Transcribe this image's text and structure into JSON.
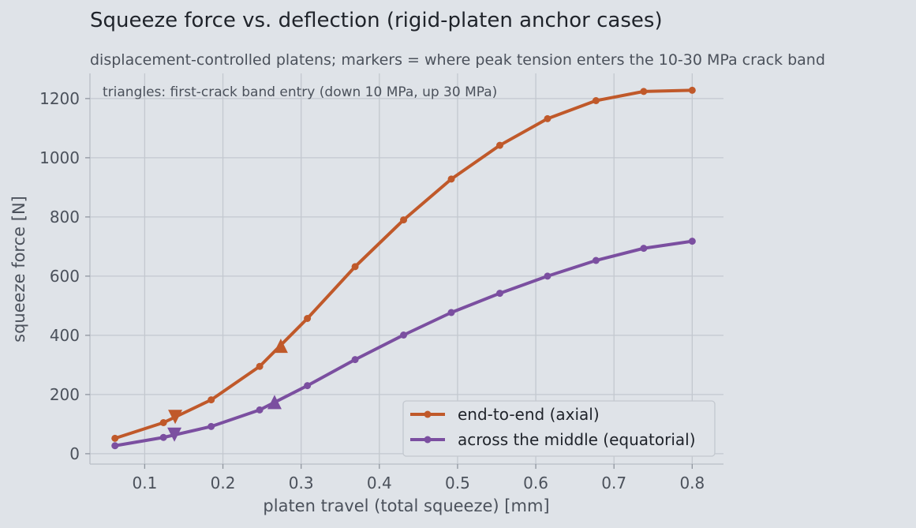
{
  "chart_data": {
    "type": "line",
    "title": "Squeeze force vs. deflection (rigid-platen anchor cases)",
    "subtitle": "displacement-controlled platens; markers = where peak tension enters the 10-30 MPa crack band",
    "annotation": "triangles: first-crack band entry (down 10 MPa, up 30 MPa)",
    "xlabel": "platen travel (total squeeze)  [mm]",
    "ylabel": "squeeze force  [N]",
    "xlim": [
      0.03,
      0.84
    ],
    "ylim": [
      -35,
      1285
    ],
    "xticks": [
      0.1,
      0.2,
      0.3,
      0.4,
      0.5,
      0.6,
      0.7,
      0.8
    ],
    "xtick_labels": [
      "0.1",
      "0.2",
      "0.3",
      "0.4",
      "0.5",
      "0.6",
      "0.7",
      "0.8"
    ],
    "yticks": [
      0,
      200,
      400,
      600,
      800,
      1000,
      1200
    ],
    "ytick_labels": [
      "0",
      "200",
      "400",
      "600",
      "800",
      "1000",
      "1200"
    ],
    "grid": true,
    "legend_position": "lower-right",
    "series": [
      {
        "name": "end-to-end (axial)",
        "color": "#c0592a",
        "x": [
          0.062,
          0.124,
          0.185,
          0.247,
          0.308,
          0.369,
          0.431,
          0.492,
          0.554,
          0.615,
          0.677,
          0.738,
          0.8
        ],
        "y": [
          52,
          105,
          182,
          295,
          457,
          632,
          790,
          928,
          1042,
          1132,
          1193,
          1224,
          1228
        ],
        "markers": [
          {
            "kind": "down",
            "x": 0.139,
            "y": 127
          },
          {
            "kind": "up",
            "x": 0.274,
            "y": 362
          }
        ]
      },
      {
        "name": "across the middle (equatorial)",
        "color": "#7b4fa0",
        "x": [
          0.062,
          0.124,
          0.185,
          0.247,
          0.308,
          0.369,
          0.431,
          0.492,
          0.554,
          0.615,
          0.677,
          0.738,
          0.8
        ],
        "y": [
          27,
          55,
          92,
          148,
          230,
          318,
          401,
          477,
          542,
          600,
          653,
          694,
          718
        ],
        "markers": [
          {
            "kind": "down",
            "x": 0.138,
            "y": 67
          },
          {
            "kind": "up",
            "x": 0.266,
            "y": 172
          }
        ]
      }
    ]
  }
}
